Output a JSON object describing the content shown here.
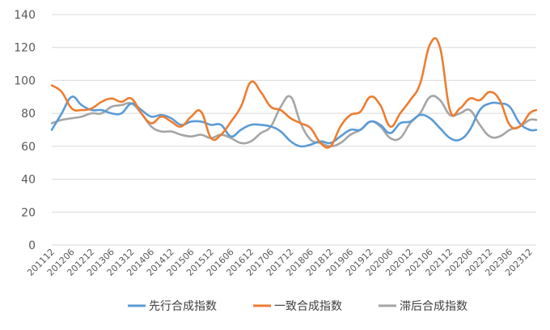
{
  "chart_data": {
    "type": "line",
    "title": "",
    "xlabel": "",
    "ylabel": "",
    "ylim": [
      0,
      140
    ],
    "yticks": [
      0,
      20,
      40,
      60,
      80,
      100,
      120,
      140
    ],
    "grid": true,
    "legend_position": "bottom",
    "x_tick_labels": [
      "201112",
      "201206",
      "201212",
      "201306",
      "201312",
      "201406",
      "201412",
      "201506",
      "201512",
      "201606",
      "201612",
      "201706",
      "201712",
      "201806",
      "201812",
      "201906",
      "201912",
      "202006",
      "202012",
      "202106",
      "202112",
      "202206",
      "202212",
      "202306",
      "202312"
    ],
    "series": [
      {
        "name": "先行合成指数",
        "color": "#5B9BD5",
        "points": [
          [
            "201112",
            70
          ],
          [
            "201203",
            80
          ],
          [
            "201206",
            90
          ],
          [
            "201209",
            85
          ],
          [
            "201212",
            82
          ],
          [
            "201303",
            82
          ],
          [
            "201306",
            80
          ],
          [
            "201309",
            80
          ],
          [
            "201312",
            86
          ],
          [
            "201403",
            82
          ],
          [
            "201406",
            78
          ],
          [
            "201409",
            79
          ],
          [
            "201412",
            77
          ],
          [
            "201503",
            73
          ],
          [
            "201506",
            75
          ],
          [
            "201509",
            75
          ],
          [
            "201512",
            73
          ],
          [
            "201603",
            73
          ],
          [
            "201606",
            66
          ],
          [
            "201609",
            70
          ],
          [
            "201612",
            73
          ],
          [
            "201703",
            73
          ],
          [
            "201706",
            72
          ],
          [
            "201709",
            69
          ],
          [
            "201712",
            63
          ],
          [
            "201803",
            60
          ],
          [
            "201806",
            61
          ],
          [
            "201809",
            63
          ],
          [
            "201812",
            62
          ],
          [
            "201903",
            66
          ],
          [
            "201906",
            70
          ],
          [
            "201909",
            70
          ],
          [
            "201912",
            75
          ],
          [
            "202003",
            73
          ],
          [
            "202006",
            68
          ],
          [
            "202009",
            74
          ],
          [
            "202012",
            75
          ],
          [
            "202103",
            79
          ],
          [
            "202106",
            77
          ],
          [
            "202109",
            71
          ],
          [
            "202112",
            65
          ],
          [
            "202203",
            64
          ],
          [
            "202206",
            70
          ],
          [
            "202209",
            82
          ],
          [
            "202212",
            86
          ],
          [
            "202303",
            86
          ],
          [
            "202306",
            84
          ],
          [
            "202309",
            74
          ],
          [
            "202312",
            70
          ],
          [
            "202402",
            70
          ]
        ]
      },
      {
        "name": "一致合成指数",
        "color": "#ED7D31",
        "points": [
          [
            "201112",
            97
          ],
          [
            "201203",
            93
          ],
          [
            "201206",
            83
          ],
          [
            "201209",
            82
          ],
          [
            "201212",
            83
          ],
          [
            "201303",
            87
          ],
          [
            "201306",
            89
          ],
          [
            "201309",
            87
          ],
          [
            "201312",
            89
          ],
          [
            "201403",
            80
          ],
          [
            "201406",
            74
          ],
          [
            "201409",
            78
          ],
          [
            "201412",
            75
          ],
          [
            "201503",
            72
          ],
          [
            "201506",
            78
          ],
          [
            "201509",
            81
          ],
          [
            "201512",
            65
          ],
          [
            "201603",
            67
          ],
          [
            "201606",
            75
          ],
          [
            "201609",
            84
          ],
          [
            "201612",
            99
          ],
          [
            "201703",
            93
          ],
          [
            "201706",
            84
          ],
          [
            "201709",
            82
          ],
          [
            "201712",
            77
          ],
          [
            "201803",
            74
          ],
          [
            "201806",
            71
          ],
          [
            "201809",
            62
          ],
          [
            "201812",
            60
          ],
          [
            "201903",
            72
          ],
          [
            "201906",
            79
          ],
          [
            "201909",
            81
          ],
          [
            "201912",
            90
          ],
          [
            "202003",
            85
          ],
          [
            "202006",
            72
          ],
          [
            "202009",
            80
          ],
          [
            "202012",
            88
          ],
          [
            "202103",
            98
          ],
          [
            "202106",
            122
          ],
          [
            "202109",
            120
          ],
          [
            "202112",
            82
          ],
          [
            "202203",
            83
          ],
          [
            "202206",
            89
          ],
          [
            "202209",
            88
          ],
          [
            "202212",
            93
          ],
          [
            "202303",
            88
          ],
          [
            "202306",
            73
          ],
          [
            "202309",
            72
          ],
          [
            "202312",
            80
          ],
          [
            "202402",
            82
          ]
        ]
      },
      {
        "name": "滞后合成指数",
        "color": "#A5A5A5",
        "points": [
          [
            "201112",
            74
          ],
          [
            "201203",
            76
          ],
          [
            "201206",
            77
          ],
          [
            "201209",
            78
          ],
          [
            "201212",
            80
          ],
          [
            "201303",
            80
          ],
          [
            "201306",
            84
          ],
          [
            "201309",
            85
          ],
          [
            "201312",
            86
          ],
          [
            "201403",
            80
          ],
          [
            "201406",
            72
          ],
          [
            "201409",
            69
          ],
          [
            "201412",
            69
          ],
          [
            "201503",
            67
          ],
          [
            "201506",
            66
          ],
          [
            "201509",
            67
          ],
          [
            "201512",
            65
          ],
          [
            "201603",
            67
          ],
          [
            "201606",
            65
          ],
          [
            "201609",
            62
          ],
          [
            "201612",
            63
          ],
          [
            "201703",
            68
          ],
          [
            "201706",
            72
          ],
          [
            "201709",
            84
          ],
          [
            "201712",
            90
          ],
          [
            "201803",
            74
          ],
          [
            "201806",
            64
          ],
          [
            "201809",
            62
          ],
          [
            "201812",
            60
          ],
          [
            "201903",
            62
          ],
          [
            "201906",
            67
          ],
          [
            "201909",
            70
          ],
          [
            "201912",
            75
          ],
          [
            "202003",
            72
          ],
          [
            "202006",
            65
          ],
          [
            "202009",
            65
          ],
          [
            "202012",
            74
          ],
          [
            "202103",
            80
          ],
          [
            "202106",
            90
          ],
          [
            "202109",
            88
          ],
          [
            "202112",
            79
          ],
          [
            "202203",
            80
          ],
          [
            "202206",
            82
          ],
          [
            "202209",
            73
          ],
          [
            "202212",
            66
          ],
          [
            "202303",
            66
          ],
          [
            "202306",
            70
          ],
          [
            "202309",
            72
          ],
          [
            "202312",
            76
          ],
          [
            "202402",
            76
          ]
        ]
      }
    ]
  }
}
